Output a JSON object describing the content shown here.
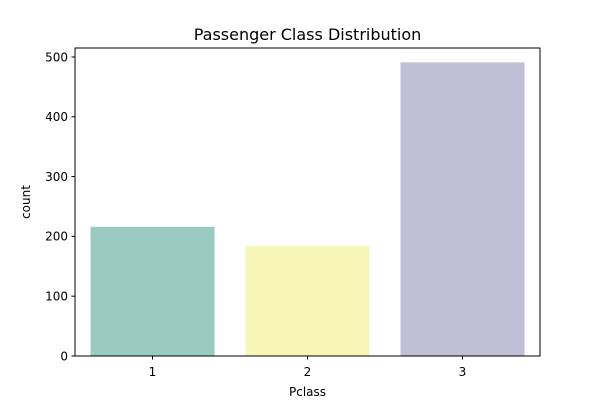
{
  "chart_data": {
    "type": "bar",
    "title": "Passenger Class Distribution",
    "xlabel": "Pclass",
    "ylabel": "count",
    "categories": [
      "1",
      "2",
      "3"
    ],
    "values": [
      216,
      184,
      491
    ],
    "colors": [
      "#99cbc2",
      "#f6f6b9",
      "#c1bed8"
    ],
    "ylim": [
      0,
      515
    ],
    "yticks": [
      0,
      100,
      200,
      300,
      400,
      500
    ],
    "grid": false
  }
}
